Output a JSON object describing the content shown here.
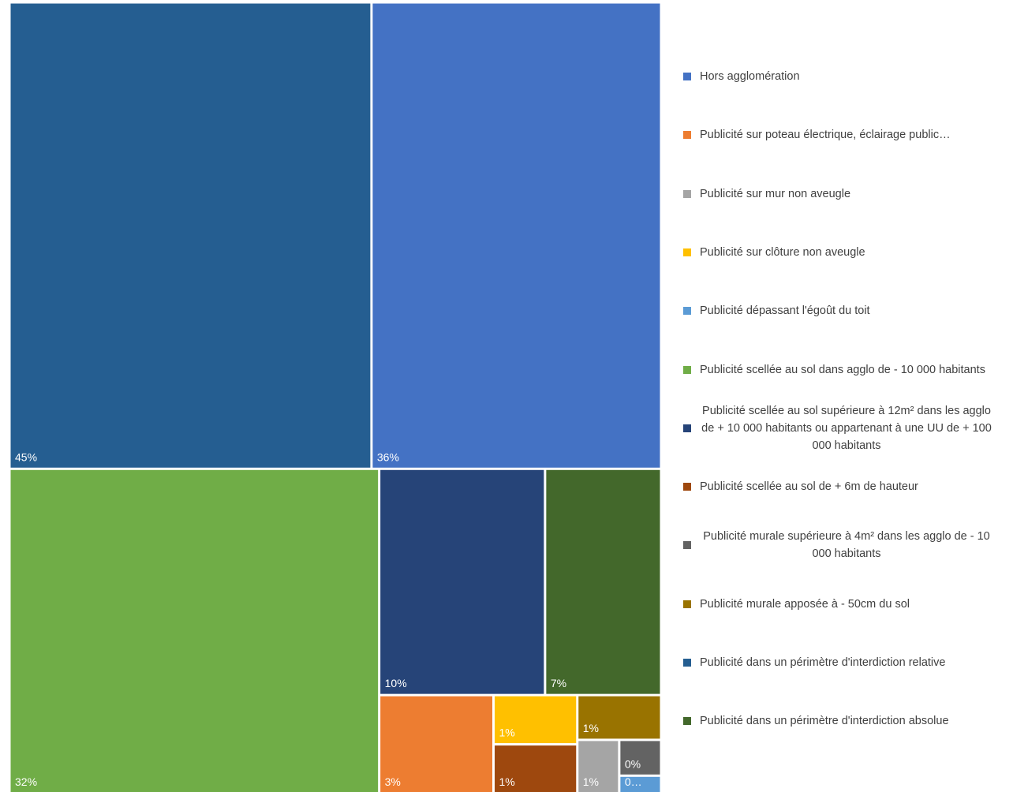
{
  "chart_data": {
    "type": "treemap",
    "categories": [
      "Hors agglomération",
      "Publicité sur poteau électrique, éclairage public…",
      "Publicité sur mur non aveugle",
      "Publicité sur clôture non aveugle",
      "Publicité dépassant l'égoût du toit",
      "Publicité scellée au sol dans agglo de - 10 000 habitants",
      "Publicité scellée au sol supérieure à 12m² dans les agglo de + 10 000 habitants ou appartenant à une UU de + 100 000 habitants",
      "Publicité scellée au sol de + 6m de hauteur",
      "Publicité murale supérieure à 4m² dans les agglo de - 10 000 habitants",
      "Publicité murale apposée à - 50cm du sol",
      "Publicité dans un périmètre d'interdiction relative",
      "Publicité dans un périmètre d'interdiction absolue"
    ],
    "values": [
      36,
      3,
      0.6,
      1.1,
      0.2,
      32,
      10,
      1.1,
      0.4,
      1,
      45,
      7
    ],
    "value_labels": [
      "36%",
      "3%",
      "1%",
      "1%",
      "0…",
      "32%",
      "10%",
      "1%",
      "0%",
      "1%",
      "45%",
      "7%"
    ],
    "colors": [
      "#4472c4",
      "#ed7d31",
      "#a5a5a5",
      "#ffc000",
      "#5b9bd5",
      "#70ad47",
      "#264478",
      "#9e480e",
      "#636363",
      "#997300",
      "#255e91",
      "#43682b"
    ],
    "legend": "right"
  }
}
